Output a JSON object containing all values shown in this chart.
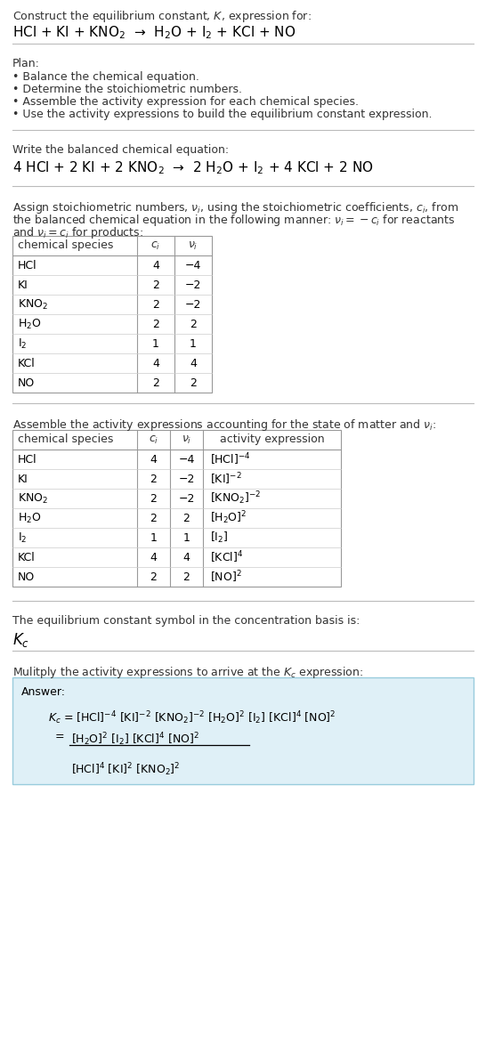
{
  "bg_color": "#ffffff",
  "text_color": "#000000",
  "gray_text": "#555555",
  "table_border_color": "#999999",
  "answer_box_color": "#dff0f7",
  "answer_box_border": "#99ccdd",
  "title_line1": "Construct the equilibrium constant, $K$, expression for:",
  "reaction_unbalanced": "HCl + KI + KNO$_2$  →  H$_2$O + I$_2$ + KCl + NO",
  "plan_header": "Plan:",
  "plan_items": [
    "• Balance the chemical equation.",
    "• Determine the stoichiometric numbers.",
    "• Assemble the activity expression for each chemical species.",
    "• Use the activity expressions to build the equilibrium constant expression."
  ],
  "balanced_header": "Write the balanced chemical equation:",
  "reaction_balanced": "4 HCl + 2 KI + 2 KNO$_2$  →  2 H$_2$O + I$_2$ + 4 KCl + 2 NO",
  "stoich_intro": "Assign stoichiometric numbers, $\\nu_i$, using the stoichiometric coefficients, $c_i$, from",
  "stoich_intro2": "the balanced chemical equation in the following manner: $\\nu_i = -c_i$ for reactants",
  "stoich_intro3": "and $\\nu_i = c_i$ for products:",
  "table1_headers": [
    "chemical species",
    "$c_i$",
    "$\\nu_i$"
  ],
  "table1_data": [
    [
      "HCl",
      "4",
      "−4"
    ],
    [
      "KI",
      "2",
      "−2"
    ],
    [
      "KNO$_2$",
      "2",
      "−2"
    ],
    [
      "H$_2$O",
      "2",
      "2"
    ],
    [
      "I$_2$",
      "1",
      "1"
    ],
    [
      "KCl",
      "4",
      "4"
    ],
    [
      "NO",
      "2",
      "2"
    ]
  ],
  "activity_header": "Assemble the activity expressions accounting for the state of matter and $\\nu_i$:",
  "table2_headers": [
    "chemical species",
    "$c_i$",
    "$\\nu_i$",
    "activity expression"
  ],
  "table2_data": [
    [
      "HCl",
      "4",
      "−4",
      "[HCl]$^{-4}$"
    ],
    [
      "KI",
      "2",
      "−2",
      "[KI]$^{-2}$"
    ],
    [
      "KNO$_2$",
      "2",
      "−2",
      "[KNO$_2$]$^{-2}$"
    ],
    [
      "H$_2$O",
      "2",
      "2",
      "[H$_2$O]$^2$"
    ],
    [
      "I$_2$",
      "1",
      "1",
      "[I$_2$]"
    ],
    [
      "KCl",
      "4",
      "4",
      "[KCl]$^4$"
    ],
    [
      "NO",
      "2",
      "2",
      "[NO]$^2$"
    ]
  ],
  "kc_header": "The equilibrium constant symbol in the concentration basis is:",
  "kc_symbol": "$K_c$",
  "multiply_header": "Mulitply the activity expressions to arrive at the $K_c$ expression:",
  "answer_label": "Answer:",
  "answer_line1": "$K_c$ = [HCl]$^{-4}$ [KI]$^{-2}$ [KNO$_2$]$^{-2}$ [H$_2$O]$^2$ [I$_2$] [KCl]$^4$ [NO]$^2$",
  "answer_eq": "= ",
  "answer_num": "[H$_2$O]$^2$ [I$_2$] [KCl]$^4$ [NO]$^2$",
  "answer_den": "[HCl]$^4$ [KI]$^2$ [KNO$_2$]$^2$"
}
